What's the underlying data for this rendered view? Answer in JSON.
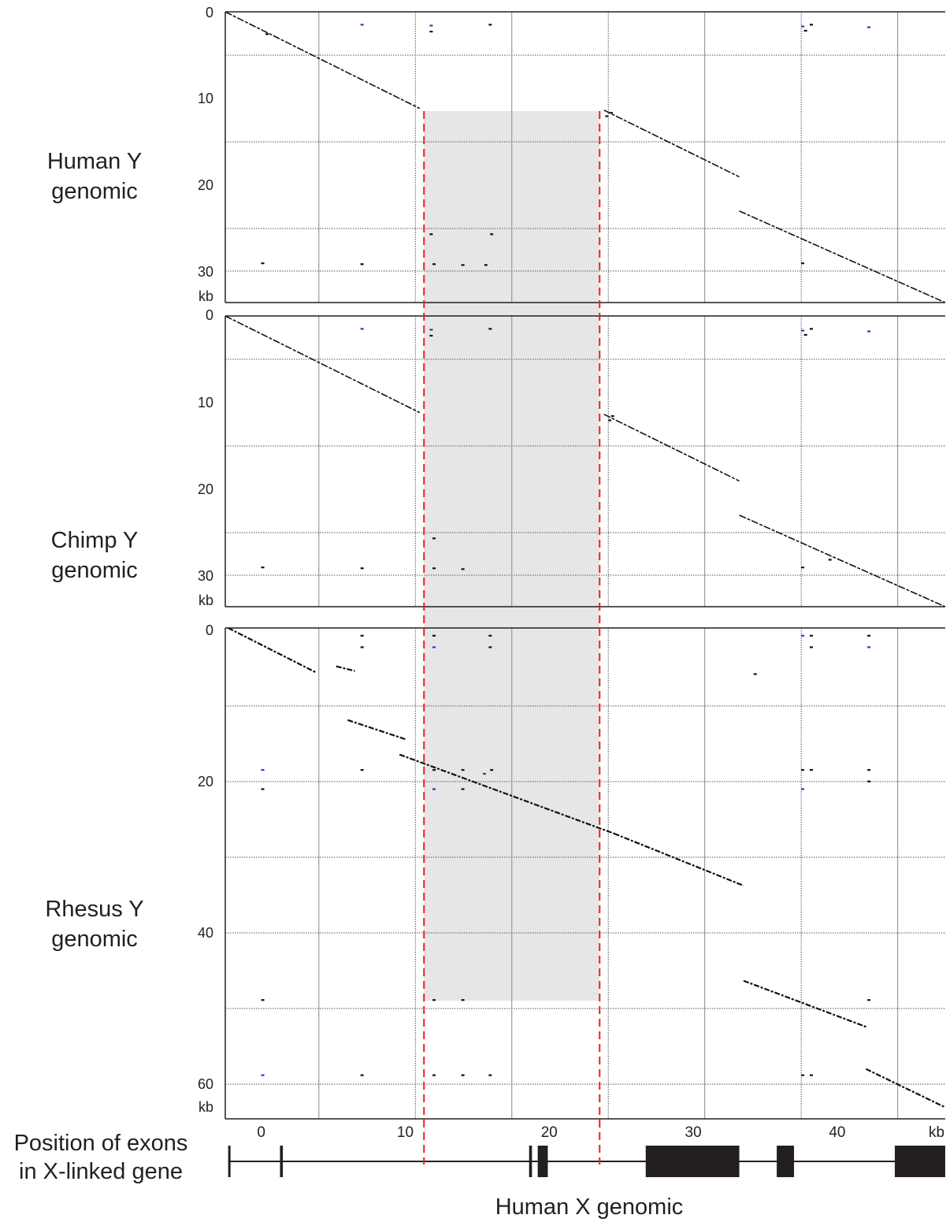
{
  "chart_data": {
    "type": "dotplot",
    "xlabel": "Human X genomic",
    "x_ticks": [
      "0",
      "10",
      "20",
      "30",
      "40",
      "kb"
    ],
    "xlim": [
      -2.5,
      47.5
    ],
    "shaded_region": [
      11.3,
      23.5
    ],
    "colors": {
      "shade": "#e6e6e6",
      "dash": "#ee1c25",
      "dots": "#111111",
      "blue_dots": "#3333cc",
      "frame": "#231f20"
    },
    "panels": [
      {
        "label": [
          "Human Y",
          "genomic"
        ],
        "y_ticks": [
          "0",
          "10",
          "20",
          "30",
          "kb"
        ],
        "ylim": [
          0,
          34
        ],
        "segments": [
          {
            "x": [
              -2.5,
              11.0
            ],
            "y": [
              0,
              11.3
            ]
          },
          {
            "x": [
              23.8,
              33.2
            ],
            "y": [
              11.5,
              19.3
            ]
          },
          {
            "x": [
              33.2,
              47.5
            ],
            "y": [
              23.3,
              34.0
            ]
          }
        ],
        "dots": [
          {
            "x": 7,
            "y": 1.5,
            "c": "b"
          },
          {
            "x": 11.8,
            "y": 1.6,
            "c": "b"
          },
          {
            "x": 11.8,
            "y": 2.3
          },
          {
            "x": 15.9,
            "y": 1.5
          },
          {
            "x": 37.6,
            "y": 1.7,
            "c": "b"
          },
          {
            "x": 37.8,
            "y": 2.2
          },
          {
            "x": 38.2,
            "y": 1.5
          },
          {
            "x": 42.2,
            "y": 1.8,
            "c": "b"
          },
          {
            "x": 0.4,
            "y": 2.6
          },
          {
            "x": 24,
            "y": 12.2
          },
          {
            "x": 24.3,
            "y": 11.8
          },
          {
            "x": 11.8,
            "y": 26.0
          },
          {
            "x": 16,
            "y": 26.0
          },
          {
            "x": 12,
            "y": 29.5
          },
          {
            "x": 14,
            "y": 29.6
          },
          {
            "x": 15.6,
            "y": 29.6
          },
          {
            "x": 7,
            "y": 29.5
          },
          {
            "x": 0.1,
            "y": 29.4
          },
          {
            "x": 37.6,
            "y": 29.4
          }
        ]
      },
      {
        "label": [
          "Chimp Y",
          "genomic"
        ],
        "y_ticks": [
          "0",
          "10",
          "20",
          "30",
          "kb"
        ],
        "ylim": [
          0,
          34
        ],
        "segments": [
          {
            "x": [
              -2.5,
              11.0
            ],
            "y": [
              0,
              11.3
            ]
          },
          {
            "x": [
              23.8,
              33.2
            ],
            "y": [
              11.5,
              19.3
            ]
          },
          {
            "x": [
              33.2,
              47.5
            ],
            "y": [
              23.3,
              34.0
            ]
          }
        ],
        "dots": [
          {
            "x": 7,
            "y": 1.5,
            "c": "b"
          },
          {
            "x": 11.8,
            "y": 1.6,
            "c": "b"
          },
          {
            "x": 11.8,
            "y": 2.3
          },
          {
            "x": 15.9,
            "y": 1.5
          },
          {
            "x": 37.6,
            "y": 1.7,
            "c": "b"
          },
          {
            "x": 37.8,
            "y": 2.2
          },
          {
            "x": 38.2,
            "y": 1.5
          },
          {
            "x": 42.2,
            "y": 1.8,
            "c": "b"
          },
          {
            "x": 24.2,
            "y": 12.2
          },
          {
            "x": 24.4,
            "y": 11.7
          },
          {
            "x": 12,
            "y": 26.0
          },
          {
            "x": 12,
            "y": 29.5
          },
          {
            "x": 14,
            "y": 29.6
          },
          {
            "x": 7,
            "y": 29.5
          },
          {
            "x": 0.1,
            "y": 29.4
          },
          {
            "x": 37.6,
            "y": 29.4
          },
          {
            "x": 39.5,
            "y": 28.5
          }
        ]
      },
      {
        "label": [
          "Rhesus Y",
          "genomic"
        ],
        "y_ticks": [
          "0",
          "20",
          "40",
          "60",
          "kb"
        ],
        "ylim": [
          0,
          64
        ],
        "segments": [
          {
            "x": [
              -2.3,
              3.8
            ],
            "y": [
              0,
              5.8
            ]
          },
          {
            "x": [
              5.2,
              6.5
            ],
            "y": [
              5.0,
              5.6
            ]
          },
          {
            "x": [
              6.0,
              10.0
            ],
            "y": [
              12.0,
              14.5
            ]
          },
          {
            "x": [
              9.6,
              24.5
            ],
            "y": [
              16.5,
              26.8
            ]
          },
          {
            "x": 24.5,
            "xe": 33.5,
            "y": [
              26.8,
              33.6
            ]
          },
          {
            "x": [
              33.5,
              42.0
            ],
            "y": [
              46.0,
              52.0
            ]
          },
          {
            "x": [
              42.0,
              47.5
            ],
            "y": [
              57.5,
              62.5
            ]
          }
        ],
        "dots": [
          {
            "x": 0.1,
            "y": 18.5,
            "c": "b"
          },
          {
            "x": 0.1,
            "y": 21
          },
          {
            "x": 7,
            "y": 1
          },
          {
            "x": 7,
            "y": 2.5
          },
          {
            "x": 7,
            "y": 18.5
          },
          {
            "x": 12,
            "y": 1
          },
          {
            "x": 12,
            "y": 2.5,
            "c": "b"
          },
          {
            "x": 15.9,
            "y": 1
          },
          {
            "x": 15.9,
            "y": 2.5
          },
          {
            "x": 12,
            "y": 18.5
          },
          {
            "x": 14,
            "y": 18.5
          },
          {
            "x": 16,
            "y": 18.5
          },
          {
            "x": 12,
            "y": 21,
            "c": "b"
          },
          {
            "x": 14,
            "y": 21
          },
          {
            "x": 15.5,
            "y": 19,
            "c": "b"
          },
          {
            "x": 37.6,
            "y": 1,
            "c": "b"
          },
          {
            "x": 38.2,
            "y": 1
          },
          {
            "x": 38.2,
            "y": 2.5
          },
          {
            "x": 42.2,
            "y": 1
          },
          {
            "x": 42.2,
            "y": 2.5,
            "c": "b"
          },
          {
            "x": 34.3,
            "y": 6
          },
          {
            "x": 37.6,
            "y": 18.5
          },
          {
            "x": 38.2,
            "y": 18.5
          },
          {
            "x": 37.6,
            "y": 21,
            "c": "b"
          },
          {
            "x": 42.2,
            "y": 18.5
          },
          {
            "x": 42.2,
            "y": 20
          },
          {
            "x": 0.1,
            "y": 48.5
          },
          {
            "x": 12,
            "y": 48.5
          },
          {
            "x": 14,
            "y": 48.5
          },
          {
            "x": 42.2,
            "y": 48.5
          },
          {
            "x": 0.1,
            "y": 58.3,
            "c": "b"
          },
          {
            "x": 7,
            "y": 58.3
          },
          {
            "x": 12,
            "y": 58.3
          },
          {
            "x": 14,
            "y": 58.3
          },
          {
            "x": 15.9,
            "y": 58.3
          },
          {
            "x": 37.6,
            "y": 58.3
          },
          {
            "x": 38.2,
            "y": 58.3
          }
        ]
      }
    ],
    "exon_track": {
      "label": [
        "Position of exons",
        "in X-linked gene"
      ],
      "span": [
        -2.3,
        47.5
      ],
      "exons": [
        [
          -2.3,
          -2.2
        ],
        [
          1.3,
          1.5
        ],
        [
          18.6,
          18.8
        ],
        [
          19.2,
          19.9
        ],
        [
          26.7,
          33.2
        ],
        [
          35.8,
          37.0
        ],
        [
          44.0,
          47.5
        ]
      ]
    }
  }
}
